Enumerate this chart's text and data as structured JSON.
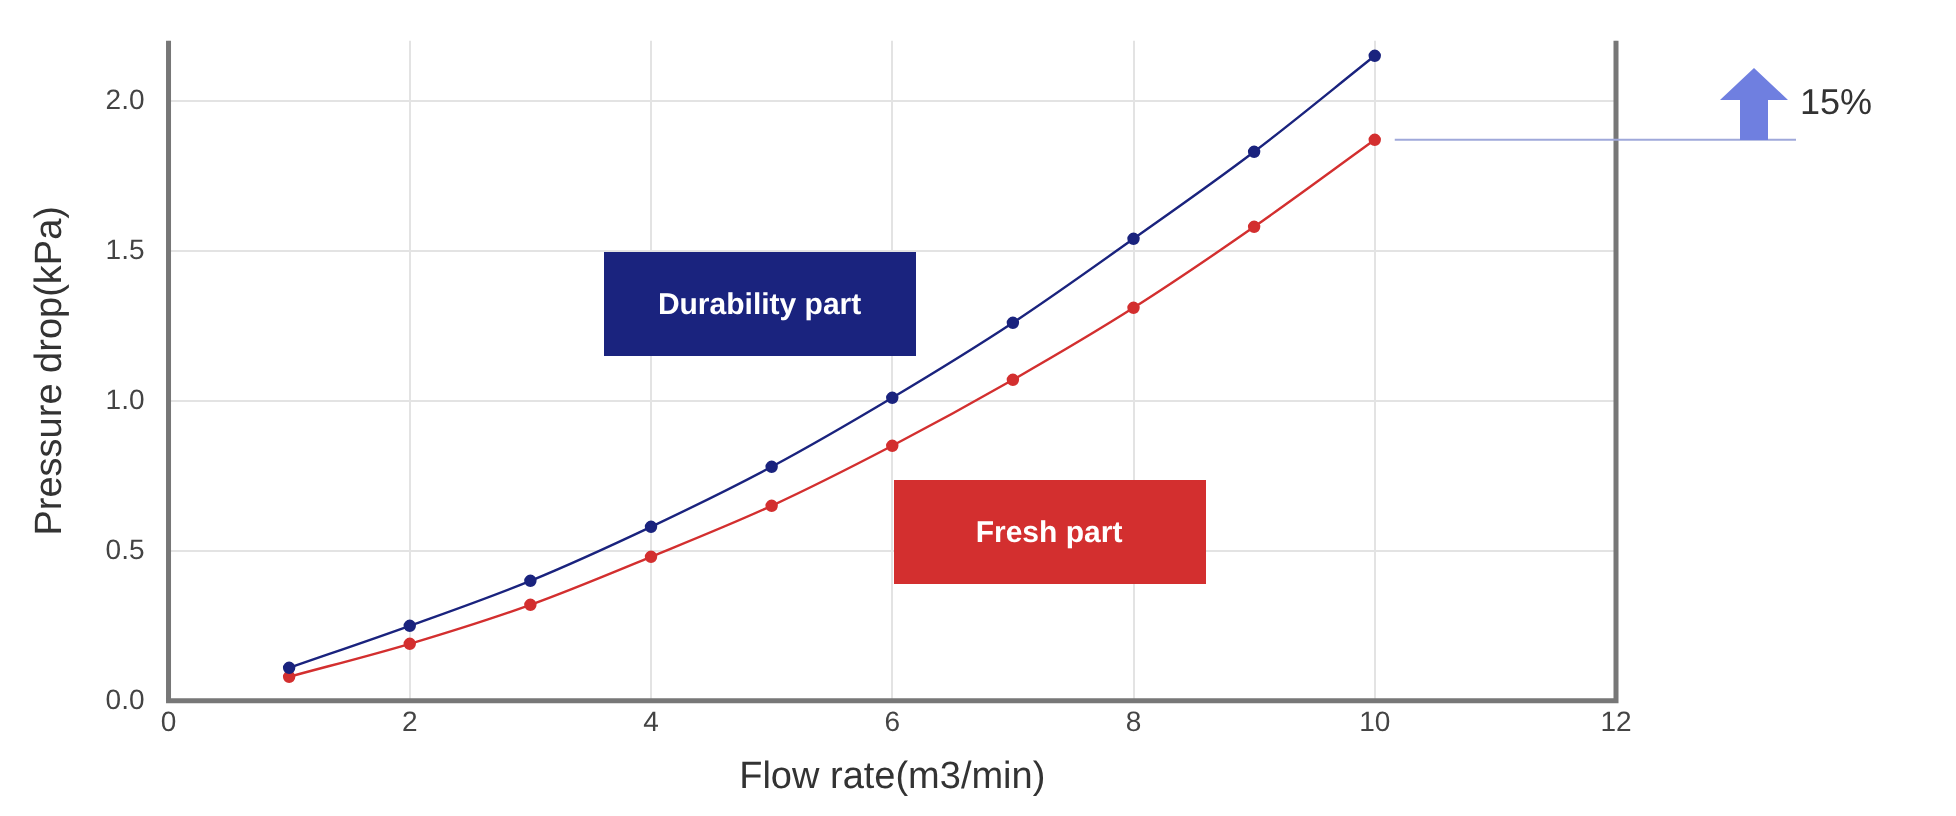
{
  "chart_data": {
    "type": "line",
    "xlabel": "Flow rate(m3/min)",
    "ylabel": "Pressure drop(kPa)",
    "x": [
      1,
      2,
      3,
      4,
      5,
      6,
      7,
      8,
      9,
      10
    ],
    "series": [
      {
        "name": "Durability part",
        "color": "#1a237e",
        "values": [
          0.11,
          0.25,
          0.4,
          0.58,
          0.78,
          1.01,
          1.26,
          1.54,
          1.83,
          2.15
        ]
      },
      {
        "name": "Fresh part",
        "color": "#d32f2f",
        "values": [
          0.08,
          0.19,
          0.32,
          0.48,
          0.65,
          0.85,
          1.07,
          1.31,
          1.58,
          1.87
        ]
      }
    ],
    "xlim": [
      0,
      12
    ],
    "xticks": [
      0,
      2,
      4,
      6,
      8,
      10,
      12
    ],
    "ylim": [
      0,
      2.2
    ],
    "yticks": [
      {
        "value": 0,
        "label": "0.0"
      },
      {
        "value": 0.5,
        "label": "0.5"
      },
      {
        "value": 1,
        "label": "1.0"
      },
      {
        "value": 1.5,
        "label": "1.5"
      },
      {
        "value": 2,
        "label": "2.0"
      }
    ],
    "annotations": [
      "15%"
    ],
    "grid": true,
    "legend": false,
    "marker": "circle",
    "line_style": "solid"
  }
}
